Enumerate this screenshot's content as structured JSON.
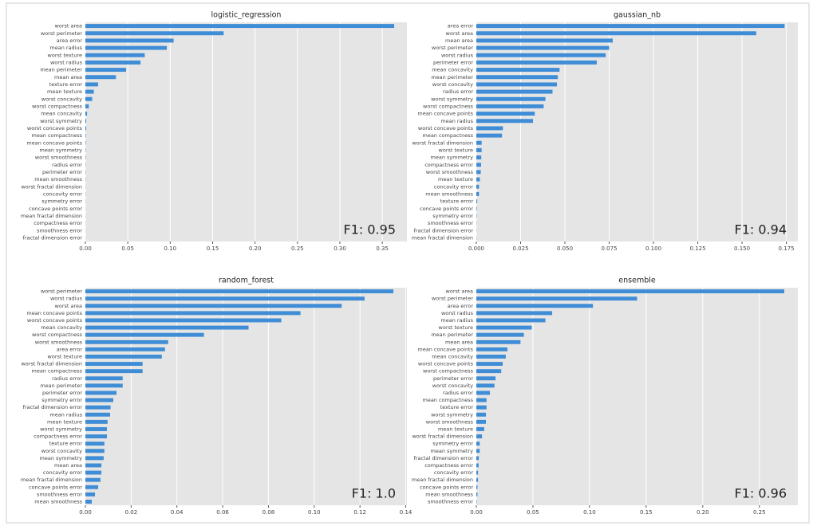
{
  "chart_data": [
    {
      "type": "barh",
      "title": "logistic_regression",
      "color": "#3f8dd6",
      "grid": true,
      "annotation": "F1: 0.95",
      "categories": [
        "worst area",
        "worst perimeter",
        "area error",
        "mean radius",
        "worst texture",
        "worst radius",
        "mean perimeter",
        "mean area",
        "texture error",
        "mean texture",
        "worst concavity",
        "worst compactness",
        "mean concavity",
        "worst symmetry",
        "worst concave points",
        "mean compactness",
        "mean concave points",
        "mean symmetry",
        "worst smoothness",
        "radius error",
        "perimeter error",
        "mean smoothness",
        "worst fractal dimension",
        "concavity error",
        "symmetry error",
        "concave points error",
        "mean fractal dimension",
        "compactness error",
        "smoothness error",
        "fractal dimension error"
      ],
      "values": [
        0.364,
        0.163,
        0.104,
        0.096,
        0.07,
        0.065,
        0.048,
        0.036,
        0.015,
        0.01,
        0.008,
        0.004,
        0.002,
        0.001,
        0.001,
        0.0005,
        0.0005,
        0.0004,
        0.0004,
        0.0003,
        0.0003,
        0.0003,
        0.0002,
        0.0002,
        0.0002,
        0.0001,
        0.0001,
        0.0001,
        0.0001,
        0.0001
      ],
      "xlim": [
        0,
        0.379
      ],
      "xticks": [
        {
          "value": 0,
          "label": "0.00"
        },
        0.05,
        {
          "value": 0.1,
          "label": "0.10"
        },
        0.15,
        {
          "value": 0.2,
          "label": "0.20"
        },
        0.25,
        {
          "value": 0.3,
          "label": "0.30"
        },
        0.35
      ]
    },
    {
      "type": "barh",
      "title": "gaussian_nb",
      "color": "#3f8dd6",
      "grid": true,
      "annotation": "F1: 0.94",
      "categories": [
        "area error",
        "worst area",
        "mean area",
        "worst perimeter",
        "worst radius",
        "perimeter error",
        "mean concavity",
        "mean perimeter",
        "worst concavity",
        "radius error",
        "worst symmetry",
        "worst compactness",
        "mean concave points",
        "mean radius",
        "worst concave points",
        "mean compactness",
        "worst fractal dimension",
        "worst texture",
        "mean symmetry",
        "compactness error",
        "worst smoothness",
        "mean texture",
        "concavity error",
        "mean smoothness",
        "texture error",
        "concave points error",
        "symmetry error",
        "smoothness error",
        "fractal dimension error",
        "mean fractal dimension"
      ],
      "values": [
        0.174,
        0.158,
        0.077,
        0.075,
        0.073,
        0.068,
        0.047,
        0.046,
        0.0455,
        0.043,
        0.039,
        0.038,
        0.033,
        0.032,
        0.015,
        0.0145,
        0.003,
        0.003,
        0.0028,
        0.0027,
        0.0025,
        0.002,
        0.0015,
        0.0015,
        0.0005,
        0.0003,
        0.0002,
        0.0001,
        0.0001,
        0.0001
      ],
      "xlim": [
        0,
        0.1815
      ],
      "xticks": [
        {
          "value": 0,
          "label": "0.000"
        },
        0.025,
        {
          "value": 0.05,
          "label": "0.050"
        },
        0.075,
        {
          "value": 0.1,
          "label": "0.100"
        },
        0.125,
        {
          "value": 0.15,
          "label": "0.150"
        },
        0.175
      ]
    },
    {
      "type": "barh",
      "title": "random_forest",
      "color": "#3f8dd6",
      "grid": true,
      "annotation": "F1: 1.0",
      "categories": [
        "worst perimeter",
        "worst radius",
        "worst area",
        "mean concave points",
        "worst concave points",
        "mean concavity",
        "worst compactness",
        "worst smoothness",
        "area error",
        "worst texture",
        "worst fractal dimension",
        "mean compactness",
        "radius error",
        "mean perimeter",
        "perimeter error",
        "symmetry error",
        "fractal dimension error",
        "mean radius",
        "mean texture",
        "worst symmetry",
        "compactness error",
        "texture error",
        "worst concavity",
        "mean symmetry",
        "mean area",
        "concavity error",
        "mean fractal dimension",
        "concave points error",
        "smoothness error",
        "mean smoothness"
      ],
      "values": [
        0.1346,
        0.122,
        0.112,
        0.094,
        0.0856,
        0.0713,
        0.0518,
        0.0362,
        0.0348,
        0.0334,
        0.025,
        0.025,
        0.0163,
        0.0163,
        0.0136,
        0.0122,
        0.011,
        0.0108,
        0.0097,
        0.0094,
        0.0094,
        0.0083,
        0.0083,
        0.008,
        0.007,
        0.007,
        0.0066,
        0.0056,
        0.0042,
        0.0028
      ],
      "xlim": [
        0,
        0.1405
      ],
      "xticks": [
        {
          "value": 0,
          "label": "0.00"
        },
        0.02,
        0.04,
        0.06,
        0.08,
        {
          "value": 0.1,
          "label": "0.10"
        },
        0.12,
        0.14
      ]
    },
    {
      "type": "barh",
      "title": "ensemble",
      "color": "#3f8dd6",
      "grid": true,
      "annotation": "F1: 0.96",
      "categories": [
        "worst area",
        "worst perimeter",
        "area error",
        "worst radius",
        "mean radius",
        "worst texture",
        "mean perimeter",
        "mean area",
        "mean concave points",
        "mean concavity",
        "worst concave points",
        "worst compactness",
        "perimeter error",
        "worst concavity",
        "radius error",
        "mean compactness",
        "texture error",
        "worst symmetry",
        "worst smoothness",
        "mean texture",
        "worst fractal dimension",
        "symmetry error",
        "mean symmetry",
        "fractal dimension error",
        "compactness error",
        "concavity error",
        "mean fractal dimension",
        "concave points error",
        "mean smoothness",
        "smoothness error"
      ],
      "values": [
        0.272,
        0.142,
        0.103,
        0.067,
        0.061,
        0.049,
        0.042,
        0.039,
        0.0275,
        0.026,
        0.0233,
        0.022,
        0.017,
        0.016,
        0.012,
        0.009,
        0.009,
        0.0085,
        0.0085,
        0.007,
        0.005,
        0.003,
        0.003,
        0.0022,
        0.002,
        0.0015,
        0.0015,
        0.001,
        0.001,
        0.0003
      ],
      "xlim": [
        0,
        0.284
      ],
      "xticks": [
        {
          "value": 0,
          "label": "0.00"
        },
        0.05,
        {
          "value": 0.1,
          "label": "0.10"
        },
        0.15,
        {
          "value": 0.2,
          "label": "0.20"
        },
        0.25
      ]
    }
  ]
}
